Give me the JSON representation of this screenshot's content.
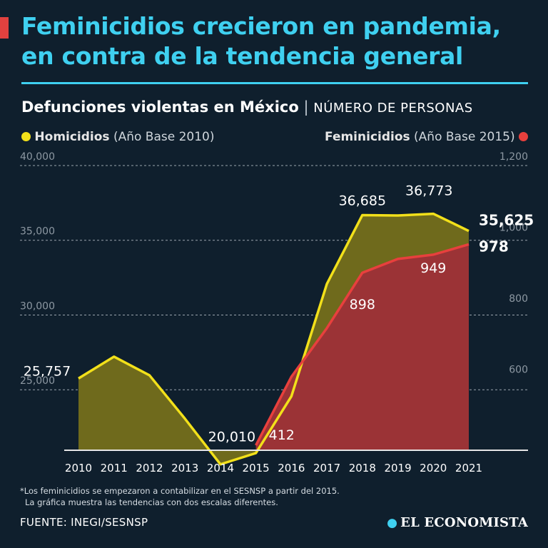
{
  "header": {
    "title_line1": "Feminicidios crecieron en pandemia,",
    "title_line2": "en contra de la tendencia general",
    "subtitle_main": "Defunciones violentas en México",
    "subtitle_separator": "|",
    "subtitle_unit": "NÚMERO DE PERSONAS"
  },
  "legend": {
    "left": {
      "name": "Homicidios",
      "base": "(Año Base 2010)",
      "color": "#f2e01a"
    },
    "right": {
      "name": "Feminicidios",
      "base": "(Año Base 2015)",
      "color": "#e8403d"
    }
  },
  "chart_data": {
    "type": "area",
    "title": "Defunciones violentas en México",
    "x": [
      "2010",
      "2011",
      "2012",
      "2013",
      "2014",
      "2015",
      "2016",
      "2017",
      "2018",
      "2019",
      "2020",
      "2021"
    ],
    "left_axis": {
      "min": 21000,
      "max": 40000,
      "ticks": [
        "40,000",
        "35,000",
        "30,000",
        "25,000"
      ],
      "tick_values": [
        40000,
        35000,
        30000,
        25000
      ]
    },
    "right_axis": {
      "min": 400,
      "max": 1200,
      "ticks": [
        "1,200",
        "1,000",
        "800",
        "600"
      ],
      "tick_values": [
        1200,
        1000,
        800,
        600
      ]
    },
    "series": [
      {
        "name": "Homicidios",
        "axis": "left",
        "color": "#f2e01a",
        "fill": "#6f6a1c",
        "x": [
          "2010",
          "2011",
          "2012",
          "2013",
          "2014",
          "2015",
          "2016",
          "2017",
          "2018",
          "2019",
          "2020",
          "2021"
        ],
        "values": [
          25757,
          27213,
          25967,
          23063,
          20010,
          20762,
          24559,
          32079,
          36685,
          36661,
          36773,
          35625
        ],
        "labels": [
          {
            "x": "2010",
            "text": "25,757",
            "bold": false
          },
          {
            "x": "2014",
            "text": "20,010",
            "bold": false
          },
          {
            "x": "2018",
            "text": "36,685",
            "bold": false
          },
          {
            "x": "2020",
            "text": "36,773",
            "bold": false
          },
          {
            "x": "2021",
            "text": "35,625",
            "bold": true
          }
        ]
      },
      {
        "name": "Feminicidios",
        "axis": "right",
        "color": "#e8403d",
        "fill": "#9b3336",
        "x": [
          "2015",
          "2016",
          "2017",
          "2018",
          "2019",
          "2020",
          "2021"
        ],
        "values": [
          412,
          605,
          742,
          898,
          937,
          949,
          978
        ],
        "labels": [
          {
            "x": "2015",
            "text": "412",
            "bold": false
          },
          {
            "x": "2018",
            "text": "898",
            "bold": false
          },
          {
            "x": "2020",
            "text": "949",
            "bold": false
          },
          {
            "x": "2021",
            "text": "978",
            "bold": true
          }
        ]
      }
    ]
  },
  "footer": {
    "note_line1": "*Los feminicidios se empezaron a contabilizar en el SESNSP a partir del 2015.",
    "note_line2": "La gráfica muestra las tendencias con dos escalas diferentes.",
    "source": "FUENTE: INEGI/SESNSP",
    "brand": "EL ECONOMISTA"
  }
}
